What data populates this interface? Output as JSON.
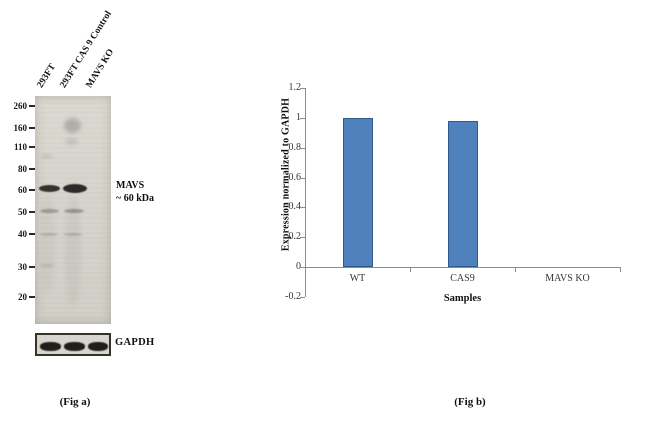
{
  "fig_a": {
    "caption": "(Fig a)",
    "lane_labels": [
      "293FT",
      "293FT CAS 9 Control",
      "MAVS KO"
    ],
    "mw_markers": [
      260,
      160,
      110,
      80,
      60,
      50,
      40,
      30,
      20
    ],
    "band_annotation": {
      "line1": "MAVS",
      "line2": "~ 60 kDa"
    },
    "loading_control_label": "GAPDH"
  },
  "fig_b": {
    "caption": "(Fig b)"
  },
  "chart_data": {
    "type": "bar",
    "title": "",
    "categories": [
      "WT",
      "CAS9",
      "MAVS KO"
    ],
    "values": [
      1.0,
      0.98,
      0
    ],
    "xlabel": "Samples",
    "ylabel": "Expression normalized to GAPDH",
    "ylim": [
      -0.2,
      1.2
    ],
    "yticks": [
      1.2,
      1,
      0.8,
      0.6,
      0.4,
      0.2,
      0,
      -0.2
    ],
    "grid": false,
    "legend": false,
    "bar_color": "#4f81bd",
    "bar_border_color": "#31598c",
    "axis_color": "#8c8c8c"
  }
}
